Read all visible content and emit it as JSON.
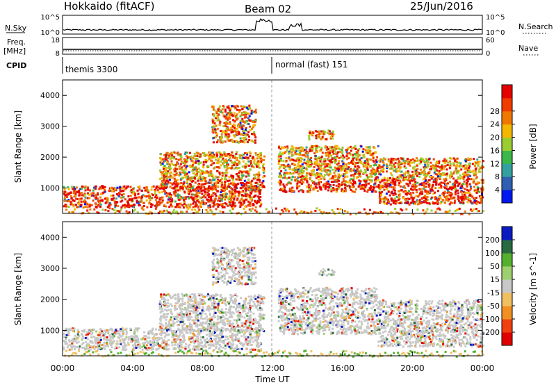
{
  "header": {
    "station": "Hokkaido (fitACF)",
    "beam": "Beam 02",
    "date": "25/Jun/2016"
  },
  "left_labels": {
    "nsky": "N.Sky",
    "freq": "Freq.",
    "freq_unit": "[MHz]",
    "cpid": "CPID"
  },
  "right_labels": {
    "nsearch": "N.Search",
    "nave": "Nave"
  },
  "nsky_axis": {
    "ticks_left": [
      "10^5",
      "10^0"
    ],
    "ticks_right": [
      "10^5",
      "10^0"
    ]
  },
  "freq_axis": {
    "ticks_left": [
      "18",
      "8"
    ],
    "ticks_right": [
      "60",
      "0"
    ]
  },
  "cpid": [
    {
      "label": "themis 3300"
    },
    {
      "label": "normal (fast) 151"
    }
  ],
  "colors": {
    "power_scale": [
      "#0018f0",
      "#2f5fb0",
      "#34a0a0",
      "#3cb84a",
      "#9acd32",
      "#f4b800",
      "#f07800",
      "#f03c00",
      "#e60000"
    ],
    "velocity_scale": [
      "#0a1cc0",
      "#2a6a40",
      "#55b030",
      "#9fd070",
      "#c8c8c8",
      "#f0c060",
      "#f09020",
      "#f04010",
      "#e00000"
    ]
  },
  "chart_data": [
    {
      "type": "heatmap",
      "ylabel": "Slant Range [km]",
      "x_ticks": [
        "00:00",
        "04:00",
        "08:00",
        "12:00",
        "16:00",
        "20:00",
        "00:00"
      ],
      "xlim": [
        0,
        24
      ],
      "ylim": [
        180,
        4500
      ],
      "y_ticks": [
        1000,
        2000,
        3000,
        4000
      ],
      "colorbar": {
        "label": "Power [dB]",
        "ticks": [
          "4",
          "8",
          "12",
          "16",
          "20",
          "24",
          "28"
        ]
      },
      "regions": [
        {
          "t0": 0.0,
          "t1": 11.3,
          "r0": 400,
          "r1": 1100
        },
        {
          "t0": 5.5,
          "t1": 11.5,
          "r0": 1000,
          "r1": 2200
        },
        {
          "t0": 8.5,
          "t1": 11.0,
          "r0": 2500,
          "r1": 3700
        },
        {
          "t0": 12.3,
          "t1": 18.0,
          "r0": 900,
          "r1": 2400
        },
        {
          "t0": 14.0,
          "t1": 15.5,
          "r0": 2600,
          "r1": 2900
        },
        {
          "t0": 18.0,
          "t1": 24.0,
          "r0": 500,
          "r1": 2000
        }
      ]
    },
    {
      "type": "heatmap",
      "ylabel": "Slant Range [km]",
      "xlabel": "Time UT",
      "x_ticks": [
        "00:00",
        "04:00",
        "08:00",
        "12:00",
        "16:00",
        "20:00",
        "00:00"
      ],
      "xlim": [
        0,
        24
      ],
      "ylim": [
        180,
        4500
      ],
      "y_ticks": [
        1000,
        2000,
        3000,
        4000
      ],
      "colorbar": {
        "label": "Velocity [m s^-1]",
        "ticks": [
          "200",
          "100",
          "50",
          "15",
          "-15",
          "-50",
          "-100",
          "-200"
        ]
      },
      "regions": [
        {
          "t0": 0.0,
          "t1": 11.3,
          "r0": 400,
          "r1": 1100
        },
        {
          "t0": 5.5,
          "t1": 11.5,
          "r0": 1000,
          "r1": 2200
        },
        {
          "t0": 8.5,
          "t1": 11.0,
          "r0": 2500,
          "r1": 3700
        },
        {
          "t0": 12.3,
          "t1": 18.0,
          "r0": 900,
          "r1": 2400
        },
        {
          "t0": 14.5,
          "t1": 15.5,
          "r0": 2800,
          "r1": 3000
        },
        {
          "t0": 18.0,
          "t1": 24.0,
          "r0": 500,
          "r1": 2000
        }
      ]
    }
  ]
}
